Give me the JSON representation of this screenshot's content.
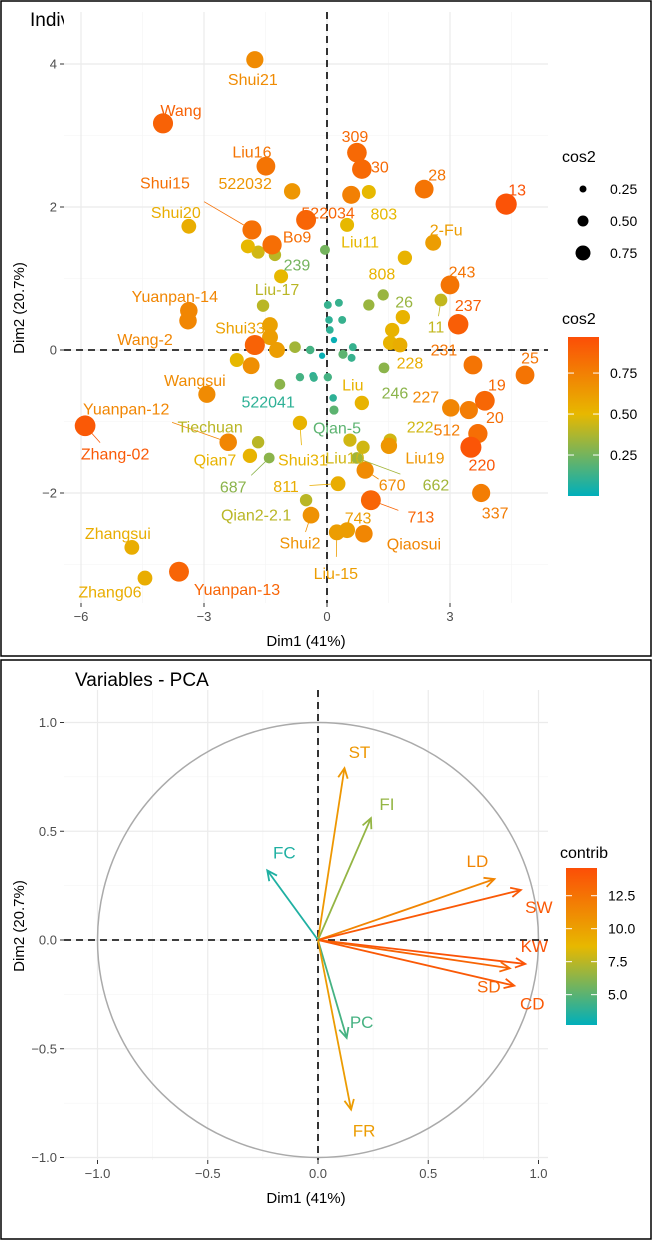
{
  "chart_data": [
    {
      "type": "scatter",
      "title": "Individuals - PCA",
      "xlabel": "Dim1 (41%)",
      "ylabel": "Dim2 (20.7%)",
      "xlim": [
        -6.4,
        5.4
      ],
      "ylim": [
        -3.6,
        4.75
      ],
      "xticks": [
        -6,
        -3,
        0,
        3
      ],
      "yticks": [
        -2,
        0,
        2,
        4
      ],
      "grid": true,
      "legend": {
        "position": "right",
        "size_title": "cos2",
        "size_values": [
          0.25,
          0.5,
          0.75
        ],
        "color_title": "cos2",
        "color_ticks": [
          0.25,
          0.5,
          0.75
        ],
        "color_range": [
          0,
          0.97
        ]
      },
      "colors": {
        "low": "#00AFBB",
        "mid": "#E7B800",
        "high": "#FC4E07"
      },
      "points": [
        {
          "name": "Shui21",
          "x": -1.76,
          "y": 4.06,
          "cos2": 0.7
        },
        {
          "name": "Wang",
          "x": -4.0,
          "y": 3.17,
          "cos2": 0.88
        },
        {
          "name": "Liu16",
          "x": -1.49,
          "y": 2.57,
          "cos2": 0.8
        },
        {
          "name": "522032",
          "x": -0.85,
          "y": 2.22,
          "cos2": 0.65
        },
        {
          "name": "Shui15",
          "x": -1.83,
          "y": 1.68,
          "cos2": 0.82
        },
        {
          "name": "Shui20",
          "x": -3.37,
          "y": 1.73,
          "cos2": 0.55
        },
        {
          "name": "522034",
          "x": -0.51,
          "y": 1.82,
          "cos2": 0.87
        },
        {
          "name": "Bo9",
          "x": -1.34,
          "y": 1.47,
          "cos2": 0.83
        },
        {
          "name": "",
          "x": -1.93,
          "y": 1.45,
          "cos2": 0.5
        },
        {
          "name": "",
          "x": -1.68,
          "y": 1.37,
          "cos2": 0.45
        },
        {
          "name": "",
          "x": -1.27,
          "y": 1.33,
          "cos2": 0.4
        },
        {
          "name": "239",
          "x": -0.05,
          "y": 1.4,
          "cos2": 0.25
        },
        {
          "name": "",
          "x": -1.12,
          "y": 1.03,
          "cos2": 0.5
        },
        {
          "name": "Liu-17",
          "x": -1.56,
          "y": 0.62,
          "cos2": 0.4
        },
        {
          "name": "Yuanpan-14",
          "x": -3.37,
          "y": 0.55,
          "cos2": 0.72
        },
        {
          "name": "Wang-2",
          "x": -3.39,
          "y": 0.41,
          "cos2": 0.72
        },
        {
          "name": "Shui33",
          "x": -1.39,
          "y": 0.35,
          "cos2": 0.6
        },
        {
          "name": "",
          "x": -1.39,
          "y": 0.18,
          "cos2": 0.62
        },
        {
          "name": "",
          "x": -1.76,
          "y": 0.07,
          "cos2": 0.88
        },
        {
          "name": "",
          "x": -2.2,
          "y": -0.14,
          "cos2": 0.5
        },
        {
          "name": "",
          "x": -1.85,
          "y": -0.22,
          "cos2": 0.68
        },
        {
          "name": "",
          "x": -1.22,
          "y": 0.0,
          "cos2": 0.62
        },
        {
          "name": "",
          "x": -0.78,
          "y": 0.04,
          "cos2": 0.35
        },
        {
          "name": "",
          "x": -0.41,
          "y": 0.0,
          "cos2": 0.15
        },
        {
          "name": "",
          "x": -1.15,
          "y": -0.48,
          "cos2": 0.3
        },
        {
          "name": "",
          "x": -0.34,
          "y": -0.36,
          "cos2": 0.1
        },
        {
          "name": "",
          "x": -0.66,
          "y": -0.38,
          "cos2": 0.15
        },
        {
          "name": "Wangsui",
          "x": -2.93,
          "y": -0.62,
          "cos2": 0.7
        },
        {
          "name": "Zhang-02",
          "x": -5.9,
          "y": -1.06,
          "cos2": 0.92
        },
        {
          "name": "Yuanpan-12",
          "x": -2.41,
          "y": -1.29,
          "cos2": 0.72
        },
        {
          "name": "Tiechuan",
          "x": -1.68,
          "y": -1.29,
          "cos2": 0.4
        },
        {
          "name": "Qian7",
          "x": -1.88,
          "y": -1.48,
          "cos2": 0.52
        },
        {
          "name": "687",
          "x": -1.41,
          "y": -1.51,
          "cos2": 0.3
        },
        {
          "name": "Shui31",
          "x": -0.66,
          "y": -1.02,
          "cos2": 0.52
        },
        {
          "name": "Zhangsui",
          "x": -4.76,
          "y": -2.76,
          "cos2": 0.55
        },
        {
          "name": "Zhang06",
          "x": -4.44,
          "y": -3.19,
          "cos2": 0.55
        },
        {
          "name": "Yuanpan-13",
          "x": -3.61,
          "y": -3.1,
          "cos2": 0.87
        },
        {
          "name": "Qian2-2.1",
          "x": -0.51,
          "y": -2.1,
          "cos2": 0.4
        },
        {
          "name": "Shui2",
          "x": -0.39,
          "y": -2.31,
          "cos2": 0.67
        },
        {
          "name": "",
          "x": 0.02,
          "y": 0.63,
          "cos2": 0.12
        },
        {
          "name": "",
          "x": 0.29,
          "y": 0.66,
          "cos2": 0.12
        },
        {
          "name": "",
          "x": 0.05,
          "y": 0.42,
          "cos2": 0.1
        },
        {
          "name": "",
          "x": 0.37,
          "y": 0.42,
          "cos2": 0.12
        },
        {
          "name": "",
          "x": 0.07,
          "y": 0.28,
          "cos2": 0.1
        },
        {
          "name": "",
          "x": 0.17,
          "y": 0.14,
          "cos2": 0.02
        },
        {
          "name": "",
          "x": -0.12,
          "y": -0.08,
          "cos2": 0.02
        },
        {
          "name": "",
          "x": 0.39,
          "y": -0.06,
          "cos2": 0.2
        },
        {
          "name": "",
          "x": 0.63,
          "y": 0.04,
          "cos2": 0.12
        },
        {
          "name": "",
          "x": 0.6,
          "y": -0.11,
          "cos2": 0.12
        },
        {
          "name": "",
          "x": -0.32,
          "y": -0.39,
          "cos2": 0.12
        },
        {
          "name": "",
          "x": 0.02,
          "y": -0.38,
          "cos2": 0.15
        },
        {
          "name": "522041",
          "x": 0.15,
          "y": -0.67,
          "cos2": 0.1
        },
        {
          "name": "Qian-5",
          "x": 0.17,
          "y": -0.84,
          "cos2": 0.2
        },
        {
          "name": "Liu",
          "x": 0.85,
          "y": -0.74,
          "cos2": 0.52
        },
        {
          "name": "808",
          "x": 1.9,
          "y": 1.29,
          "cos2": 0.52
        },
        {
          "name": "26",
          "x": 1.37,
          "y": 0.77,
          "cos2": 0.33
        },
        {
          "name": "",
          "x": 1.02,
          "y": 0.63,
          "cos2": 0.33
        },
        {
          "name": "",
          "x": 1.85,
          "y": 0.46,
          "cos2": 0.52
        },
        {
          "name": "",
          "x": 1.59,
          "y": 0.28,
          "cos2": 0.52
        },
        {
          "name": "228",
          "x": 1.78,
          "y": 0.07,
          "cos2": 0.55
        },
        {
          "name": "",
          "x": 1.54,
          "y": 0.1,
          "cos2": 0.52
        },
        {
          "name": "246",
          "x": 1.39,
          "y": -0.25,
          "cos2": 0.3
        },
        {
          "name": "309",
          "x": 0.73,
          "y": 2.76,
          "cos2": 0.85
        },
        {
          "name": "30",
          "x": 0.85,
          "y": 2.53,
          "cos2": 0.85
        },
        {
          "name": "",
          "x": 0.59,
          "y": 2.17,
          "cos2": 0.75
        },
        {
          "name": "803",
          "x": 1.02,
          "y": 2.21,
          "cos2": 0.5
        },
        {
          "name": "28",
          "x": 2.37,
          "y": 2.25,
          "cos2": 0.8
        },
        {
          "name": "13",
          "x": 4.37,
          "y": 2.04,
          "cos2": 0.95
        },
        {
          "name": "Liu11",
          "x": 0.49,
          "y": 1.75,
          "cos2": 0.5
        },
        {
          "name": "2-Fu",
          "x": 2.59,
          "y": 1.5,
          "cos2": 0.62
        },
        {
          "name": "243",
          "x": 3.0,
          "y": 0.91,
          "cos2": 0.8
        },
        {
          "name": "11",
          "x": 2.78,
          "y": 0.7,
          "cos2": 0.42
        },
        {
          "name": "237",
          "x": 3.2,
          "y": 0.36,
          "cos2": 0.9
        },
        {
          "name": "231",
          "x": 3.56,
          "y": -0.21,
          "cos2": 0.8
        },
        {
          "name": "25",
          "x": 4.83,
          "y": -0.35,
          "cos2": 0.8
        },
        {
          "name": "19",
          "x": 3.85,
          "y": -0.71,
          "cos2": 0.86
        },
        {
          "name": "227",
          "x": 3.02,
          "y": -0.81,
          "cos2": 0.72
        },
        {
          "name": "512",
          "x": 3.46,
          "y": -0.84,
          "cos2": 0.76
        },
        {
          "name": "20",
          "x": 3.68,
          "y": -1.17,
          "cos2": 0.83
        },
        {
          "name": "220",
          "x": 3.51,
          "y": -1.36,
          "cos2": 0.94
        },
        {
          "name": "337",
          "x": 3.76,
          "y": -2.0,
          "cos2": 0.76
        },
        {
          "name": "222",
          "x": 1.54,
          "y": -1.26,
          "cos2": 0.45
        },
        {
          "name": "Liu19",
          "x": 1.51,
          "y": -1.34,
          "cos2": 0.65
        },
        {
          "name": "Liu10",
          "x": 0.56,
          "y": -1.26,
          "cos2": 0.45
        },
        {
          "name": "",
          "x": 0.88,
          "y": -1.36,
          "cos2": 0.45
        },
        {
          "name": "662",
          "x": 0.73,
          "y": -1.51,
          "cos2": 0.35
        },
        {
          "name": "670",
          "x": 0.93,
          "y": -1.68,
          "cos2": 0.7
        },
        {
          "name": "811",
          "x": 0.27,
          "y": -1.87,
          "cos2": 0.55
        },
        {
          "name": "713",
          "x": 1.07,
          "y": -2.1,
          "cos2": 0.87
        },
        {
          "name": "Liu-15",
          "x": 0.24,
          "y": -2.55,
          "cos2": 0.62
        },
        {
          "name": "743",
          "x": 0.49,
          "y": -2.52,
          "cos2": 0.62
        },
        {
          "name": "Qiaosui",
          "x": 0.9,
          "y": -2.57,
          "cos2": 0.72
        }
      ]
    },
    {
      "type": "scatter",
      "title": "Variables - PCA",
      "xlabel": "Dim1 (41%)",
      "ylabel": "Dim2 (20.7%)",
      "xlim": [
        -1.15,
        1.05
      ],
      "ylim": [
        -1.1,
        1.15
      ],
      "xticks": [
        -1.0,
        -0.5,
        0.0,
        0.5,
        1.0
      ],
      "yticks": [
        -1.0,
        -0.5,
        0.0,
        0.5,
        1.0
      ],
      "grid": true,
      "legend": {
        "position": "right",
        "color_title": "contrib",
        "color_ticks": [
          5.0,
          7.5,
          10.0,
          12.5
        ],
        "color_range": [
          2.7,
          14.6
        ]
      },
      "colors": {
        "low": "#00AFBB",
        "mid": "#E7B800",
        "high": "#FC4E07",
        "circle": "#aaaaaa"
      },
      "variables": [
        {
          "name": "ST",
          "x": 0.12,
          "y": 0.79,
          "contrib": 10.5
        },
        {
          "name": "FI",
          "x": 0.24,
          "y": 0.56,
          "contrib": 6.5
        },
        {
          "name": "FC",
          "x": -0.23,
          "y": 0.32,
          "contrib": 3.5
        },
        {
          "name": "LD",
          "x": 0.8,
          "y": 0.28,
          "contrib": 11.5
        },
        {
          "name": "SW",
          "x": 0.92,
          "y": 0.23,
          "contrib": 14.0
        },
        {
          "name": "KW",
          "x": 0.94,
          "y": -0.11,
          "contrib": 14.3
        },
        {
          "name": "SD",
          "x": 0.87,
          "y": -0.13,
          "contrib": 13.3
        },
        {
          "name": "CD",
          "x": 0.89,
          "y": -0.21,
          "contrib": 14.0
        },
        {
          "name": "PC",
          "x": 0.13,
          "y": -0.45,
          "contrib": 4.5
        },
        {
          "name": "FR",
          "x": 0.15,
          "y": -0.78,
          "contrib": 10.2
        }
      ]
    }
  ]
}
